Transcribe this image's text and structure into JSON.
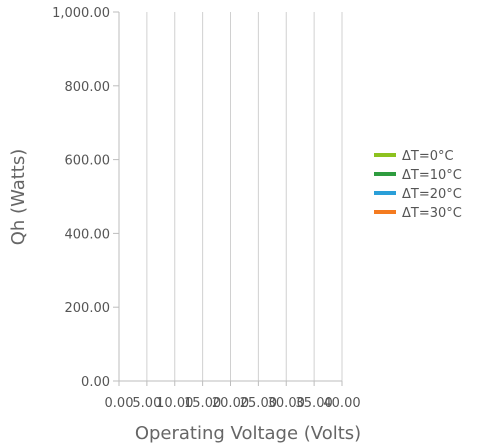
{
  "chart_data": {
    "type": "line",
    "xlabel": "Operating Voltage (Volts)",
    "ylabel": "Qh (Watts)",
    "xlim": [
      0,
      40
    ],
    "ylim": [
      0,
      1000
    ],
    "x_ticks": [
      0,
      5,
      10,
      15,
      20,
      25,
      30,
      35,
      40
    ],
    "x_tick_labels": [
      "0.00",
      "5.00",
      "10.00",
      "15.00",
      "20.00",
      "25.00",
      "30.00",
      "35.00",
      "40.00"
    ],
    "y_ticks": [
      0,
      200,
      400,
      600,
      800,
      1000
    ],
    "y_tick_labels": [
      "0.00",
      "200.00",
      "400.00",
      "600.00",
      "800.00",
      "1,000.00"
    ],
    "grid": "vertical",
    "legend_position": "right",
    "series": [
      {
        "name": "ΔT=0°C",
        "color": "#8dc21f",
        "values": []
      },
      {
        "name": "ΔT=10°C",
        "color": "#2e9c3f",
        "values": []
      },
      {
        "name": "ΔT=20°C",
        "color": "#2a9fd8",
        "values": []
      },
      {
        "name": "ΔT=30°C",
        "color": "#f47b20",
        "values": []
      }
    ]
  }
}
